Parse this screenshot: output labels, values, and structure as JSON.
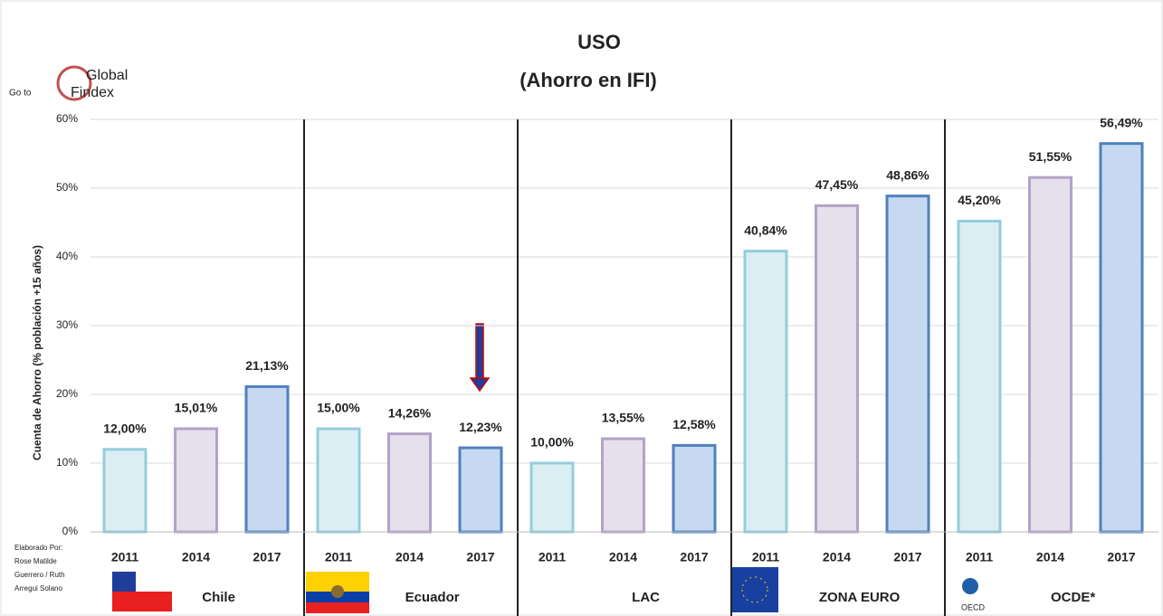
{
  "chart_data": {
    "type": "bar",
    "title": "USO",
    "subtitle": "(Ahorro en IFI)",
    "y_label": "Cuenta de Ahorro (% población +15 años)",
    "logo": {
      "prefix": "Go to",
      "line1": "Global",
      "line2": "Findex"
    },
    "note": [
      "Elaborado Por:",
      "Rose Matilde",
      "Guerrero / Ruth",
      "Arregui Solano"
    ],
    "ylim": [
      0,
      60
    ],
    "yticks": [
      {
        "value": 0,
        "label": "0%"
      },
      {
        "value": 10,
        "label": "10%"
      },
      {
        "value": 20,
        "label": "20%"
      },
      {
        "value": 30,
        "label": "30%"
      },
      {
        "value": 40,
        "label": "40%"
      },
      {
        "value": 50,
        "label": "50%"
      },
      {
        "value": 60,
        "label": "60%"
      }
    ],
    "colors": [
      {
        "fill": "#dbeef4",
        "stroke": "#93cddd"
      },
      {
        "fill": "#e5e0ec",
        "stroke": "#b3a2c7"
      },
      {
        "fill": "#c6d9f1",
        "stroke": "#4f81bd"
      }
    ],
    "groups": [
      {
        "name": "Chile",
        "categories": [
          "2011",
          "2014",
          "2017"
        ],
        "values": [
          12.0,
          15.01,
          21.13
        ],
        "value_labels": [
          "12,00%",
          "15,01%",
          "21,13%"
        ]
      },
      {
        "name": "Ecuador",
        "categories": [
          "2011",
          "2014",
          "2017"
        ],
        "values": [
          15.0,
          14.26,
          12.23
        ],
        "value_labels": [
          "15,00%",
          "14,26%",
          "12,23%"
        ]
      },
      {
        "name": "LAC",
        "categories": [
          "2011",
          "2014",
          "2017"
        ],
        "values": [
          10.0,
          13.55,
          12.58
        ],
        "value_labels": [
          "10,00%",
          "13,55%",
          "12,58%"
        ]
      },
      {
        "name": "ZONA EURO",
        "categories": [
          "2011",
          "2014",
          "2017"
        ],
        "values": [
          40.84,
          47.45,
          48.86
        ],
        "value_labels": [
          "40,84%",
          "47,45%",
          "48,86%"
        ]
      },
      {
        "name": "OCDE*",
        "categories": [
          "2011",
          "2014",
          "2017"
        ],
        "values": [
          45.2,
          51.55,
          56.49
        ],
        "value_labels": [
          "45,20%",
          "51,55%",
          "56,49%"
        ]
      }
    ]
  }
}
